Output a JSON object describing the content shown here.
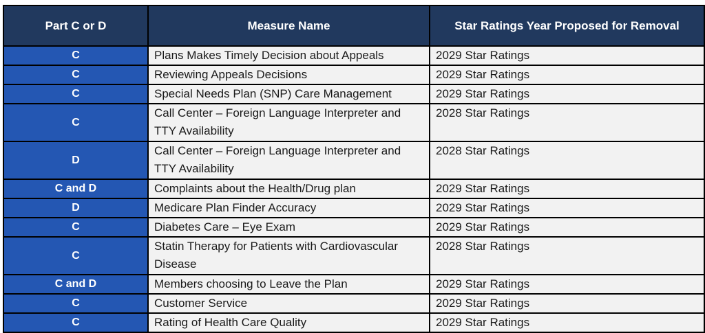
{
  "table": {
    "columns": [
      {
        "label": "Part C or D"
      },
      {
        "label": "Measure Name"
      },
      {
        "label": "Star Ratings Year Proposed for Removal"
      }
    ],
    "rows": [
      {
        "part": "C",
        "measure": "Plans Makes Timely Decision about Appeals",
        "year": "2029 Star Ratings",
        "tall": false
      },
      {
        "part": "C",
        "measure": "Reviewing Appeals Decisions",
        "year": "2029 Star Ratings",
        "tall": false
      },
      {
        "part": "C",
        "measure": "Special Needs Plan (SNP) Care Management",
        "year": "2029 Star Ratings",
        "tall": false
      },
      {
        "part": "C",
        "measure": "Call Center – Foreign Language Interpreter and TTY Availability",
        "year": "2028 Star Ratings",
        "tall": true
      },
      {
        "part": "D",
        "measure": "Call Center – Foreign Language Interpreter and TTY Availability",
        "year": "2028 Star Ratings",
        "tall": true
      },
      {
        "part": "C and D",
        "measure": "Complaints about the Health/Drug plan",
        "year": "2029 Star Ratings",
        "tall": false
      },
      {
        "part": "D",
        "measure": "Medicare Plan Finder Accuracy",
        "year": "2029 Star Ratings",
        "tall": false
      },
      {
        "part": "C",
        "measure": "Diabetes Care – Eye Exam",
        "year": "2029 Star Ratings",
        "tall": false
      },
      {
        "part": "C",
        "measure": "Statin Therapy for Patients with Cardiovascular Disease",
        "year": "2028 Star Ratings",
        "tall": true
      },
      {
        "part": "C and D",
        "measure": "Members choosing to Leave the Plan",
        "year": "2029 Star Ratings",
        "tall": false
      },
      {
        "part": "C",
        "measure": "Customer Service",
        "year": "2029 Star Ratings",
        "tall": false
      },
      {
        "part": "C",
        "measure": "Rating of Health Care Quality",
        "year": "2029 Star Ratings",
        "tall": false
      }
    ],
    "colors": {
      "header_bg": "#21395e",
      "part_column_bg": "#2457b3",
      "body_row_bg": "#f2f2f2",
      "border": "#000000",
      "header_text": "#ffffff",
      "body_text": "#1a1a1a"
    }
  }
}
